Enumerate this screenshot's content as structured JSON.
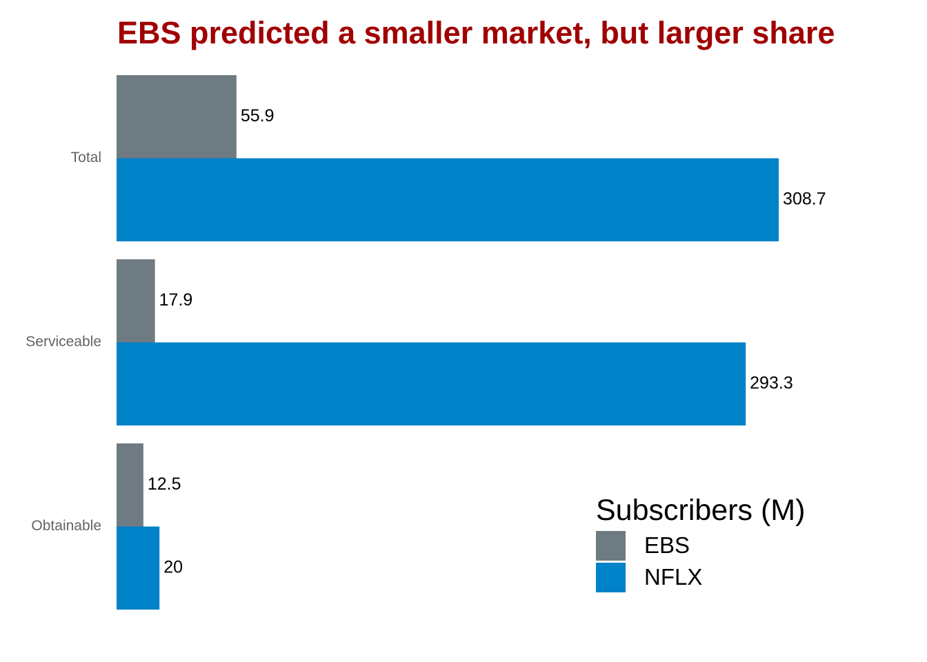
{
  "chart_data": {
    "type": "bar",
    "orientation": "horizontal",
    "title": "EBS predicted a smaller market, but larger share",
    "categories": [
      "Total",
      "Serviceable",
      "Obtainable"
    ],
    "series": [
      {
        "name": "EBS",
        "values": [
          55.9,
          17.9,
          12.5
        ],
        "labels": [
          "55.9",
          "17.9",
          "12.5"
        ],
        "color": "#6e7b83"
      },
      {
        "name": "NFLX",
        "values": [
          308.7,
          293.3,
          20
        ],
        "labels": [
          "308.7",
          "293.3",
          "20"
        ],
        "color": "#0082c8"
      }
    ],
    "xlim": [
      0,
      350
    ],
    "grid": false,
    "legend": {
      "title": "Subscribers (M)",
      "placement": "bottom-right"
    }
  },
  "colors": {
    "title": "#a00000",
    "axis_text": "#636363"
  }
}
